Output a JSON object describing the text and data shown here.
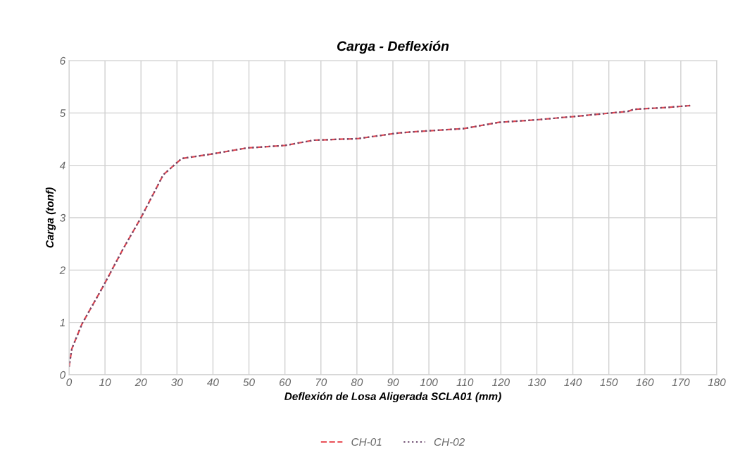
{
  "chart_data": {
    "type": "line",
    "title": "Carga - Deflexión",
    "xlabel": "Deflexión de Losa Aligerada SCLA01 (mm)",
    "ylabel": "Carga (tonf)",
    "xlim": [
      0,
      180
    ],
    "xticks": [
      0,
      10,
      20,
      30,
      40,
      50,
      60,
      70,
      80,
      90,
      100,
      110,
      120,
      130,
      140,
      150,
      160,
      170,
      180
    ],
    "ylim": [
      0,
      6
    ],
    "yticks": [
      0,
      1,
      2,
      3,
      4,
      5,
      6
    ],
    "grid": true,
    "legend": "bottom",
    "marker": "none",
    "series": [
      {
        "name": "CH-01",
        "color": "#e8474f",
        "line_style": "dashed",
        "x": [
          0,
          0.8,
          3.6,
          9.5,
          15,
          20,
          26.2,
          31.3,
          40,
          49.3,
          60,
          68.1,
          80.3,
          91.7,
          100,
          109.6,
          119.4,
          130,
          140,
          155.3,
          157,
          165,
          172.6
        ],
        "values": [
          0.15,
          0.5,
          0.97,
          1.69,
          2.4,
          3.0,
          3.82,
          4.13,
          4.22,
          4.33,
          4.38,
          4.48,
          4.51,
          4.62,
          4.66,
          4.7,
          4.82,
          4.87,
          4.93,
          5.03,
          5.07,
          5.1,
          5.14
        ]
      },
      {
        "name": "CH-02",
        "color": "#6b4a6e",
        "line_style": "dotted",
        "x": [
          0,
          0.8,
          3.6,
          9.5,
          15,
          20,
          26.2,
          31.3,
          40,
          49.3,
          60,
          68.1,
          80.3,
          91.7,
          100,
          109.6,
          119.4,
          130,
          140,
          155.3,
          157,
          165,
          172.6
        ],
        "values": [
          0.15,
          0.5,
          0.97,
          1.69,
          2.4,
          3.0,
          3.82,
          4.13,
          4.22,
          4.33,
          4.38,
          4.48,
          4.51,
          4.62,
          4.66,
          4.7,
          4.82,
          4.87,
          4.93,
          5.03,
          5.07,
          5.1,
          5.14
        ]
      }
    ]
  }
}
